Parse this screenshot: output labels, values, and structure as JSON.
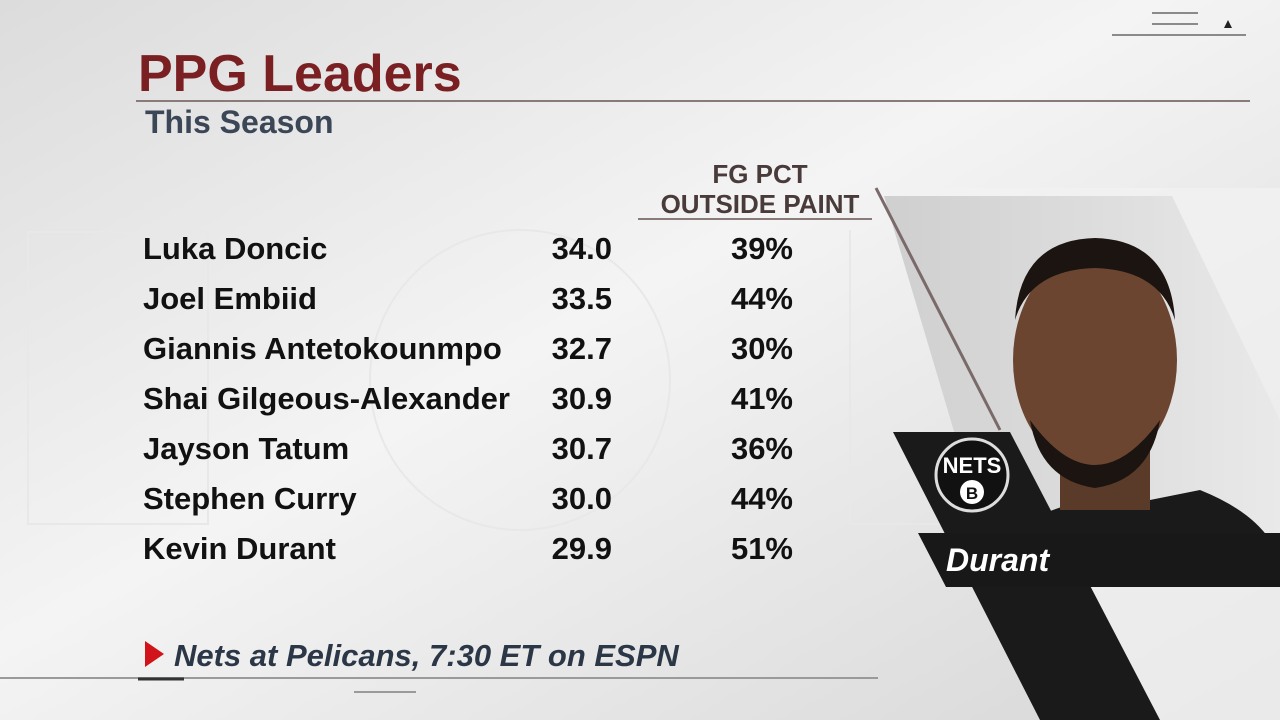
{
  "header": {
    "title": "PPG Leaders",
    "subtitle": "This Season"
  },
  "table": {
    "column_header": [
      "FG PCT",
      "OUTSIDE PAINT"
    ],
    "rows": [
      [
        "Luka Doncic",
        "34.0",
        "39%"
      ],
      [
        "Joel Embiid",
        "33.5",
        "44%"
      ],
      [
        "Giannis Antetokounmpo",
        "32.7",
        "30%"
      ],
      [
        "Shai Gilgeous-Alexander",
        "30.9",
        "41%"
      ],
      [
        "Jayson Tatum",
        "30.7",
        "36%"
      ],
      [
        "Stephen Curry",
        "30.0",
        "44%"
      ],
      [
        "Kevin Durant",
        "29.9",
        "51%"
      ]
    ]
  },
  "player_panel": {
    "team_logo": "NETS",
    "logo_letter": "B",
    "name": "Durant"
  },
  "footer": {
    "promo": "Nets at Pelicans, 7:30 ET on ESPN"
  }
}
